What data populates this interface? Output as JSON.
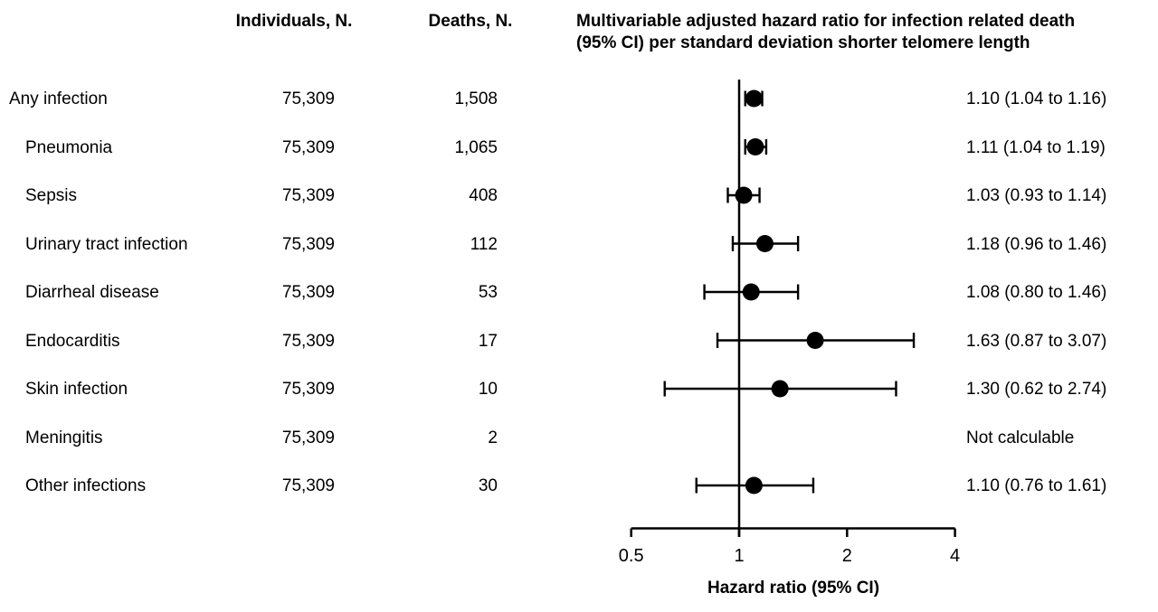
{
  "chart_data": {
    "type": "forest",
    "title_lines": [
      "Multivariable adjusted hazard ratio for infection related death",
      "(95% CI) per standard deviation shorter telomere length"
    ],
    "column_headers": {
      "individuals": "Individuals, N.",
      "deaths": "Deaths, N."
    },
    "xlabel": "Hazard ratio (95% CI)",
    "x_scale": "log2",
    "xlim": [
      0.5,
      4
    ],
    "x_ticks": [
      {
        "value": 0.5,
        "label": "0.5"
      },
      {
        "value": 1,
        "label": "1"
      },
      {
        "value": 2,
        "label": "2"
      },
      {
        "value": 4,
        "label": "4"
      }
    ],
    "reference_line": 1,
    "colors": {
      "marker": "#000000",
      "line": "#000000",
      "text": "#000000",
      "background": "#ffffff"
    },
    "rows": [
      {
        "label": "Any infection",
        "indent": false,
        "individuals": "75,309",
        "deaths": "1,508",
        "hr": 1.1,
        "ci_low": 1.04,
        "ci_high": 1.16,
        "hr_text": "1.10 (1.04 to 1.16)"
      },
      {
        "label": "Pneumonia",
        "indent": true,
        "individuals": "75,309",
        "deaths": "1,065",
        "hr": 1.11,
        "ci_low": 1.04,
        "ci_high": 1.19,
        "hr_text": "1.11 (1.04 to 1.19)"
      },
      {
        "label": "Sepsis",
        "indent": true,
        "individuals": "75,309",
        "deaths": "408",
        "hr": 1.03,
        "ci_low": 0.93,
        "ci_high": 1.14,
        "hr_text": "1.03 (0.93 to 1.14)"
      },
      {
        "label": "Urinary tract infection",
        "indent": true,
        "individuals": "75,309",
        "deaths": "112",
        "hr": 1.18,
        "ci_low": 0.96,
        "ci_high": 1.46,
        "hr_text": "1.18 (0.96 to 1.46)"
      },
      {
        "label": "Diarrheal disease",
        "indent": true,
        "individuals": "75,309",
        "deaths": "53",
        "hr": 1.08,
        "ci_low": 0.8,
        "ci_high": 1.46,
        "hr_text": "1.08 (0.80 to 1.46)"
      },
      {
        "label": "Endocarditis",
        "indent": true,
        "individuals": "75,309",
        "deaths": "17",
        "hr": 1.63,
        "ci_low": 0.87,
        "ci_high": 3.07,
        "hr_text": "1.63 (0.87 to 3.07)"
      },
      {
        "label": "Skin infection",
        "indent": true,
        "individuals": "75,309",
        "deaths": "10",
        "hr": 1.3,
        "ci_low": 0.62,
        "ci_high": 2.74,
        "hr_text": "1.30 (0.62 to 2.74)"
      },
      {
        "label": "Meningitis",
        "indent": true,
        "individuals": "75,309",
        "deaths": "2",
        "hr": null,
        "ci_low": null,
        "ci_high": null,
        "hr_text": "Not calculable"
      },
      {
        "label": "Other infections",
        "indent": true,
        "individuals": "75,309",
        "deaths": "30",
        "hr": 1.1,
        "ci_low": 0.76,
        "ci_high": 1.61,
        "hr_text": "1.10 (0.76 to 1.61)"
      }
    ]
  }
}
